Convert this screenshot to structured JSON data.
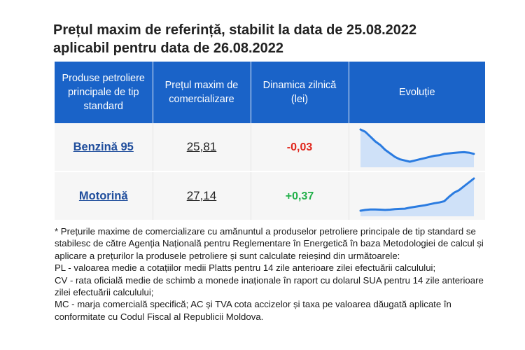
{
  "title_line1": "Prețul maxim de referință, stabilit la data de 25.08.2022",
  "title_line2": "aplicabil pentru data de 26.08.2022",
  "table": {
    "headers": [
      "Produse petroliere principale de tip standard",
      "Prețul maxim de comercializare",
      "Dinamica zilnică (lei)",
      "Evoluție"
    ],
    "rows": [
      {
        "product": "Benzină 95",
        "price": "25,81",
        "dynamic": "-0,03",
        "trend": [
          7,
          6,
          4,
          2,
          0.5,
          -1.5,
          -3,
          -4.5,
          -5.5,
          -6,
          -6.5,
          -6,
          -5.5,
          -5,
          -4.5,
          -4,
          -3.8,
          -3.2,
          -3,
          -2.8,
          -2.6,
          -2.5,
          -2.7,
          -3.2
        ]
      },
      {
        "product": "Motorină",
        "price": "27,14",
        "dynamic": "+0,37",
        "trend": [
          0.5,
          0.8,
          1.0,
          1.0,
          0.9,
          0.8,
          0.9,
          1.1,
          1.2,
          1.3,
          1.7,
          2.0,
          2.3,
          2.6,
          3.0,
          3.4,
          3.7,
          4.2,
          6.0,
          7.5,
          8.5,
          10.0,
          11.5,
          13.0
        ]
      }
    ],
    "colors": {
      "header_bg": "#1a63c8",
      "negative": "#e0261c",
      "positive": "#22b04a",
      "spark_line": "#2a7be0",
      "spark_fill": "#cfe1f8"
    }
  },
  "footnote": {
    "intro": "* Prețurile maxime de comercializare cu amănuntul a produselor petroliere principale de tip standard se stabilesc de către Agenția Națională pentru Reglementare în Energetică în baza Metodologiei de calcul și aplicare a prețurilor la produsele petroliere și sunt calculate reieșind din următoarele:",
    "pl": "PL - valoarea medie a cotațiilor medii Platts pentru 14 zile anterioare zilei efectuării calculului;",
    "cv": "CV - rata oficială medie de schimb a monede inaționale în raport cu dolarul SUA pentru 14 zile anterioare zilei efectuării calculului;",
    "mc": "MC - marja comercială specifică; AC și TVA cota accizelor și taxa pe valoarea dăugată aplicate în conformitate cu Codul Fiscal al Republicii Moldova."
  }
}
